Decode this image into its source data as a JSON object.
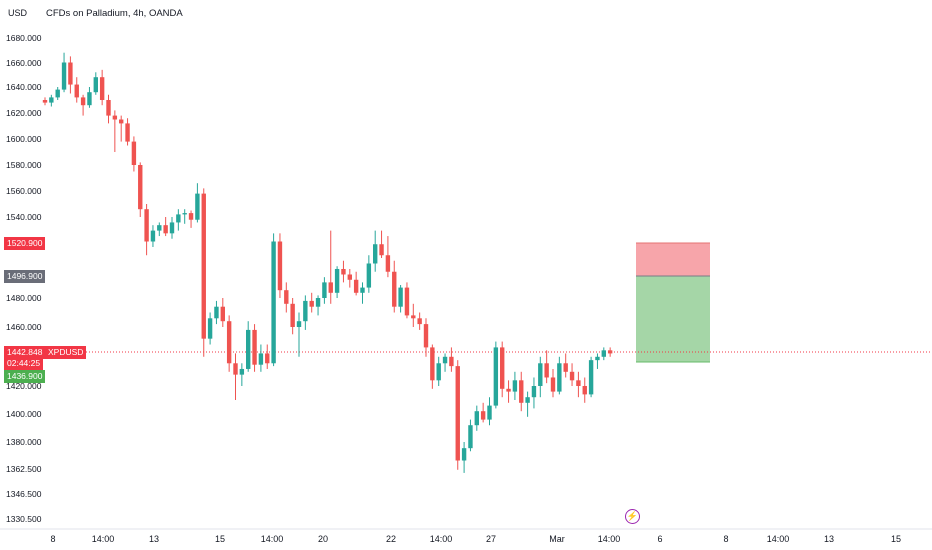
{
  "header": {
    "unit": "USD",
    "title": "CFDs on Palladium, 4h, OANDA"
  },
  "colors": {
    "up": "#26a69a",
    "down": "#ef5350",
    "stop_zone": "#f7a5aa",
    "target_zone": "#a5d6a7",
    "last_price_line": "#f23645",
    "stop_badge": "#f23645",
    "entry_badge": "#6a6d78",
    "target_badge": "#4caf50",
    "event_icon": "#9c27b0"
  },
  "price_axis": {
    "labels": [
      "1680.000",
      "1660.000",
      "1640.000",
      "1620.000",
      "1600.000",
      "1580.000",
      "1560.000",
      "1540.000",
      "1480.000",
      "1460.000",
      "1420.000",
      "1400.000",
      "1380.000",
      "1362.500",
      "1346.500",
      "1330.500"
    ]
  },
  "badges": {
    "stop": "1520.900",
    "entry": "1496.900",
    "last_price": "1442.848",
    "symbol": "XPDUSD",
    "countdown": "02:44:25",
    "target": "1436.900"
  },
  "time_axis": {
    "labels": [
      "8",
      "14:00",
      "13",
      "15",
      "14:00",
      "20",
      "22",
      "14:00",
      "27",
      "Mar",
      "14:00",
      "6",
      "8",
      "14:00",
      "13",
      "15"
    ]
  },
  "event_icon": "lightning-icon",
  "chart_data": {
    "type": "candlestick",
    "title": "CFDs on Palladium, 4h, OANDA",
    "symbol": "XPDUSD",
    "y_unit": "USD",
    "candles": [
      [
        1630,
        1632,
        1626,
        1628
      ],
      [
        1628,
        1634,
        1625,
        1632
      ],
      [
        1632,
        1640,
        1630,
        1638
      ],
      [
        1638,
        1668,
        1636,
        1660
      ],
      [
        1660,
        1665,
        1635,
        1642
      ],
      [
        1642,
        1648,
        1628,
        1632
      ],
      [
        1632,
        1634,
        1618,
        1626
      ],
      [
        1626,
        1640,
        1624,
        1636
      ],
      [
        1636,
        1652,
        1634,
        1648
      ],
      [
        1648,
        1654,
        1626,
        1630
      ],
      [
        1630,
        1634,
        1612,
        1618
      ],
      [
        1618,
        1622,
        1590,
        1615
      ],
      [
        1615,
        1618,
        1598,
        1612
      ],
      [
        1612,
        1616,
        1595,
        1598
      ],
      [
        1598,
        1602,
        1575,
        1580
      ],
      [
        1580,
        1582,
        1540,
        1546
      ],
      [
        1546,
        1550,
        1512,
        1522
      ],
      [
        1522,
        1534,
        1518,
        1530
      ],
      [
        1530,
        1536,
        1526,
        1534
      ],
      [
        1534,
        1540,
        1526,
        1528
      ],
      [
        1528,
        1540,
        1524,
        1536
      ],
      [
        1536,
        1546,
        1530,
        1542
      ],
      [
        1542,
        1546,
        1535,
        1543
      ],
      [
        1543,
        1545,
        1532,
        1538
      ],
      [
        1538,
        1566,
        1536,
        1558
      ],
      [
        1558,
        1562,
        1440,
        1452
      ],
      [
        1452,
        1470,
        1448,
        1466
      ],
      [
        1466,
        1478,
        1462,
        1474
      ],
      [
        1474,
        1480,
        1460,
        1464
      ],
      [
        1464,
        1468,
        1430,
        1436
      ],
      [
        1436,
        1442,
        1410,
        1428
      ],
      [
        1428,
        1436,
        1420,
        1432
      ],
      [
        1432,
        1464,
        1430,
        1458
      ],
      [
        1458,
        1462,
        1430,
        1435
      ],
      [
        1435,
        1448,
        1430,
        1442
      ],
      [
        1442,
        1448,
        1432,
        1436
      ],
      [
        1436,
        1528,
        1434,
        1522
      ],
      [
        1522,
        1528,
        1480,
        1486
      ],
      [
        1486,
        1492,
        1470,
        1476
      ],
      [
        1476,
        1480,
        1455,
        1460
      ],
      [
        1460,
        1470,
        1440,
        1464
      ],
      [
        1464,
        1482,
        1458,
        1478
      ],
      [
        1478,
        1484,
        1470,
        1474
      ],
      [
        1474,
        1482,
        1468,
        1480
      ],
      [
        1480,
        1496,
        1476,
        1492
      ],
      [
        1492,
        1530,
        1476,
        1484
      ],
      [
        1484,
        1504,
        1480,
        1502
      ],
      [
        1502,
        1508,
        1492,
        1498
      ],
      [
        1498,
        1502,
        1488,
        1494
      ],
      [
        1494,
        1500,
        1482,
        1484
      ],
      [
        1484,
        1492,
        1476,
        1488
      ],
      [
        1488,
        1512,
        1484,
        1506
      ],
      [
        1506,
        1530,
        1500,
        1520
      ],
      [
        1520,
        1530,
        1510,
        1512
      ],
      [
        1512,
        1526,
        1496,
        1500
      ],
      [
        1500,
        1508,
        1470,
        1474
      ],
      [
        1474,
        1490,
        1470,
        1488
      ],
      [
        1488,
        1492,
        1466,
        1468
      ],
      [
        1468,
        1476,
        1460,
        1466
      ],
      [
        1466,
        1470,
        1458,
        1462
      ],
      [
        1462,
        1466,
        1440,
        1446
      ],
      [
        1446,
        1448,
        1418,
        1424
      ],
      [
        1424,
        1440,
        1420,
        1436
      ],
      [
        1436,
        1442,
        1430,
        1440
      ],
      [
        1440,
        1446,
        1430,
        1434
      ],
      [
        1434,
        1438,
        1362,
        1368
      ],
      [
        1368,
        1380,
        1360,
        1376
      ],
      [
        1376,
        1396,
        1374,
        1392
      ],
      [
        1392,
        1406,
        1388,
        1402
      ],
      [
        1402,
        1408,
        1394,
        1396
      ],
      [
        1396,
        1412,
        1392,
        1406
      ],
      [
        1406,
        1450,
        1404,
        1446
      ],
      [
        1446,
        1450,
        1412,
        1418
      ],
      [
        1418,
        1424,
        1408,
        1416
      ],
      [
        1416,
        1430,
        1410,
        1424
      ],
      [
        1424,
        1430,
        1402,
        1408
      ],
      [
        1408,
        1416,
        1398,
        1412
      ],
      [
        1412,
        1426,
        1404,
        1420
      ],
      [
        1420,
        1440,
        1412,
        1436
      ],
      [
        1436,
        1444,
        1422,
        1426
      ],
      [
        1426,
        1432,
        1412,
        1416
      ],
      [
        1416,
        1440,
        1414,
        1436
      ],
      [
        1436,
        1442,
        1426,
        1430
      ],
      [
        1430,
        1436,
        1420,
        1424
      ],
      [
        1424,
        1430,
        1412,
        1420
      ],
      [
        1420,
        1426,
        1408,
        1414
      ],
      [
        1414,
        1440,
        1412,
        1438
      ],
      [
        1438,
        1442,
        1432,
        1440
      ],
      [
        1440,
        1446,
        1438,
        1444
      ],
      [
        1444,
        1446,
        1440,
        1442
      ]
    ],
    "position": {
      "type": "short",
      "stop": 1520.9,
      "entry": 1496.9,
      "target": 1436.9
    },
    "last_price": 1442.848,
    "ylim": [
      1322,
      1688
    ],
    "grid": false
  }
}
